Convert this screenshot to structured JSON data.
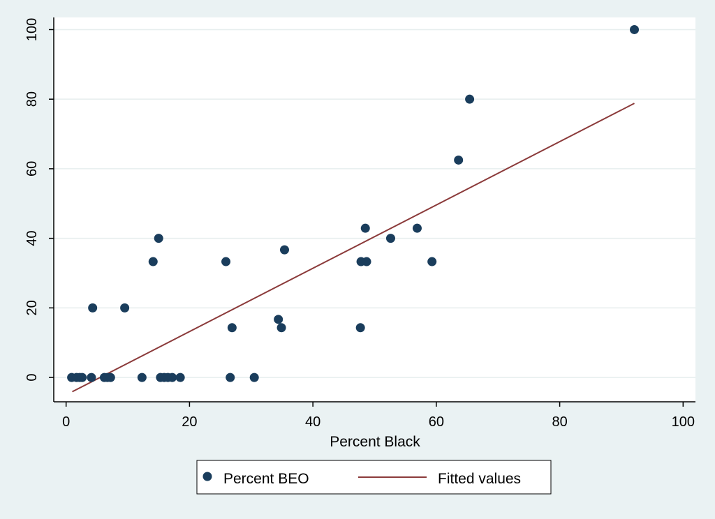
{
  "chart_data": {
    "type": "scatter",
    "xlabel": "Percent Black",
    "ylabel": "",
    "xlim": [
      -2,
      102
    ],
    "ylim": [
      -7,
      103.5
    ],
    "xticks": [
      0,
      20,
      40,
      60,
      80,
      100
    ],
    "yticks": [
      0,
      20,
      40,
      60,
      80,
      100
    ],
    "grid": true,
    "legend_position": "bottom",
    "series": [
      {
        "name": "Percent BEO",
        "kind": "scatter",
        "color": "#1a3d5c",
        "points": [
          [
            0.9,
            0
          ],
          [
            1.7,
            0
          ],
          [
            2.2,
            0
          ],
          [
            2.6,
            0
          ],
          [
            4.1,
            0
          ],
          [
            4.3,
            20
          ],
          [
            6.2,
            0
          ],
          [
            6.7,
            0
          ],
          [
            7.2,
            0
          ],
          [
            9.5,
            20
          ],
          [
            12.3,
            0
          ],
          [
            14.1,
            33.3
          ],
          [
            15.0,
            40
          ],
          [
            15.3,
            0
          ],
          [
            15.9,
            0
          ],
          [
            16.5,
            0
          ],
          [
            17.2,
            0
          ],
          [
            18.5,
            0
          ],
          [
            25.9,
            33.3
          ],
          [
            26.6,
            0
          ],
          [
            26.9,
            14.3
          ],
          [
            30.5,
            0
          ],
          [
            34.4,
            16.7
          ],
          [
            34.9,
            14.3
          ],
          [
            35.4,
            36.7
          ],
          [
            47.7,
            14.3
          ],
          [
            47.8,
            33.3
          ],
          [
            48.5,
            42.9
          ],
          [
            48.7,
            33.3
          ],
          [
            52.6,
            40
          ],
          [
            56.9,
            42.9
          ],
          [
            59.3,
            33.3
          ],
          [
            63.6,
            62.5
          ],
          [
            65.4,
            80
          ],
          [
            92.1,
            100
          ]
        ]
      },
      {
        "name": "Fitted values",
        "kind": "line",
        "color": "#8b3a3a",
        "points": [
          [
            1.0,
            -4.1
          ],
          [
            92.1,
            78.8
          ]
        ]
      }
    ]
  }
}
